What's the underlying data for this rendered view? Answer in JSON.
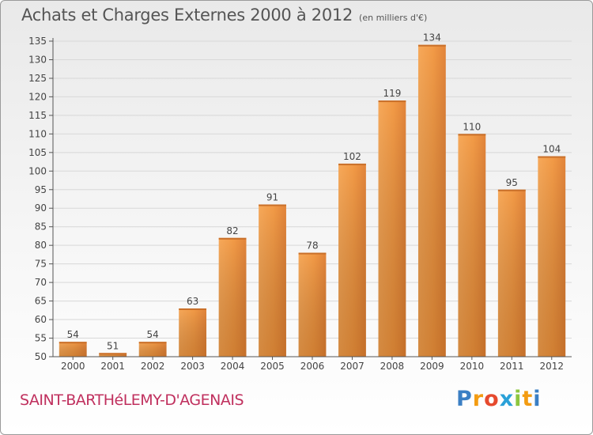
{
  "title": "Achats et Charges Externes 2000 à 2012",
  "subtitle": "(en milliers d'€)",
  "place_name": "SAINT-BARTHéLEMY-D'AGENAIS",
  "brand": {
    "letters": [
      "P",
      "r",
      "o",
      "x",
      "i",
      "t",
      "i"
    ],
    "colors": [
      "#3b7fc4",
      "#f39c12",
      "#e64a2e",
      "#2aa1d8",
      "#8dc63f",
      "#f39c12",
      "#3b7fc4"
    ]
  },
  "colors": {
    "bar_light": "#f7a95a",
    "bar_dark": "#d9782a",
    "grid": "#d8d8d8",
    "axis": "#555555"
  },
  "chart_data": {
    "type": "bar",
    "categories": [
      "2000",
      "2001",
      "2002",
      "2003",
      "2004",
      "2005",
      "2006",
      "2007",
      "2008",
      "2009",
      "2010",
      "2011",
      "2012"
    ],
    "values": [
      54,
      51,
      54,
      63,
      82,
      91,
      78,
      102,
      119,
      134,
      110,
      95,
      104
    ],
    "ylim": [
      50,
      135
    ],
    "ytick_step": 5,
    "data_labels": [
      "54",
      "51",
      "54",
      "63",
      "82",
      "91",
      "78",
      "102",
      "119",
      "134",
      "110",
      "95",
      "104"
    ],
    "grid": true
  }
}
